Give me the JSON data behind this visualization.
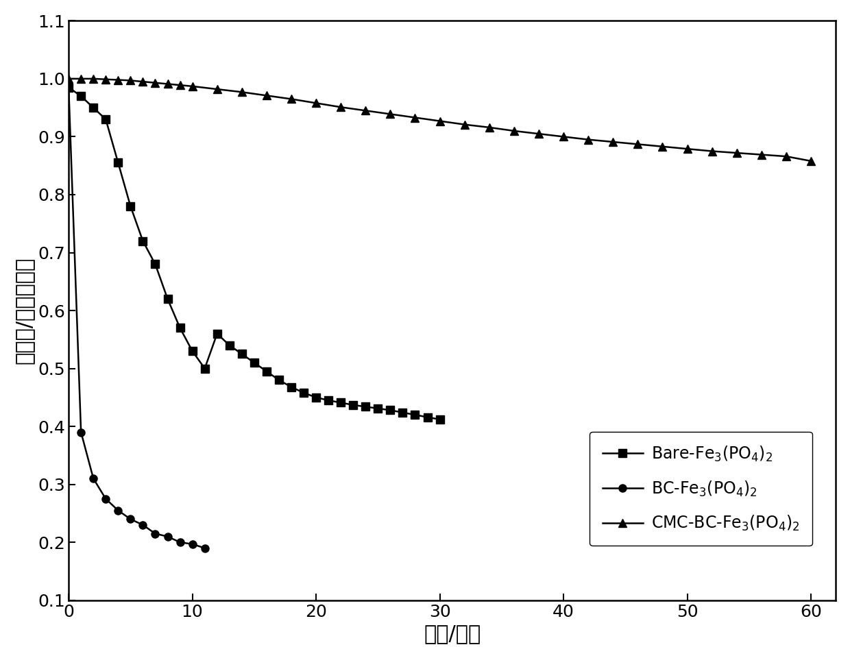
{
  "xlabel": "时间/分钟",
  "ylabel": "吸光度/初始吸光度",
  "xlim": [
    0,
    62
  ],
  "ylim": [
    0.1,
    1.1
  ],
  "xticks": [
    0,
    10,
    20,
    30,
    40,
    50,
    60
  ],
  "yticks": [
    0.1,
    0.2,
    0.3,
    0.4,
    0.5,
    0.6,
    0.7,
    0.8,
    0.9,
    1.0,
    1.1
  ],
  "series": [
    {
      "marker": "s",
      "color": "#000000",
      "x": [
        0,
        1,
        2,
        3,
        4,
        5,
        6,
        7,
        8,
        9,
        10,
        11,
        12,
        13,
        14,
        15,
        16,
        17,
        18,
        19,
        20,
        21,
        22,
        23,
        24,
        25,
        26,
        27,
        28,
        29,
        30
      ],
      "y": [
        0.985,
        0.97,
        0.95,
        0.93,
        0.855,
        0.78,
        0.72,
        0.68,
        0.62,
        0.57,
        0.53,
        0.5,
        0.56,
        0.54,
        0.525,
        0.51,
        0.495,
        0.48,
        0.468,
        0.458,
        0.45,
        0.445,
        0.441,
        0.437,
        0.434,
        0.431,
        0.428,
        0.424,
        0.42,
        0.416,
        0.412
      ]
    },
    {
      "marker": "o",
      "color": "#000000",
      "x": [
        0,
        1,
        2,
        3,
        4,
        5,
        6,
        7,
        8,
        9,
        10,
        11
      ],
      "y": [
        0.985,
        0.39,
        0.31,
        0.275,
        0.255,
        0.24,
        0.23,
        0.215,
        0.21,
        0.2,
        0.197,
        0.19
      ]
    },
    {
      "marker": "^",
      "color": "#000000",
      "x": [
        0,
        1,
        2,
        3,
        4,
        5,
        6,
        7,
        8,
        9,
        10,
        12,
        14,
        16,
        18,
        20,
        22,
        24,
        26,
        28,
        30,
        32,
        34,
        36,
        38,
        40,
        42,
        44,
        46,
        48,
        50,
        52,
        54,
        56,
        58,
        60
      ],
      "y": [
        1.0,
        1.0,
        1.0,
        0.999,
        0.998,
        0.997,
        0.995,
        0.993,
        0.991,
        0.989,
        0.987,
        0.982,
        0.977,
        0.971,
        0.965,
        0.958,
        0.951,
        0.945,
        0.939,
        0.933,
        0.927,
        0.921,
        0.916,
        0.91,
        0.905,
        0.9,
        0.895,
        0.891,
        0.887,
        0.883,
        0.879,
        0.875,
        0.872,
        0.869,
        0.866,
        0.858
      ]
    }
  ],
  "legend_labels": [
    "Bare-Fe$_3$(PO$_4$)$_2$",
    "BC-Fe$_3$(PO$_4$)$_2$",
    "CMC-BC-Fe$_3$(PO$_4$)$_2$"
  ],
  "background_color": "#ffffff",
  "marker_size": 8,
  "linewidth": 1.8,
  "font_size_label": 22,
  "font_size_tick": 18,
  "font_size_legend": 17
}
